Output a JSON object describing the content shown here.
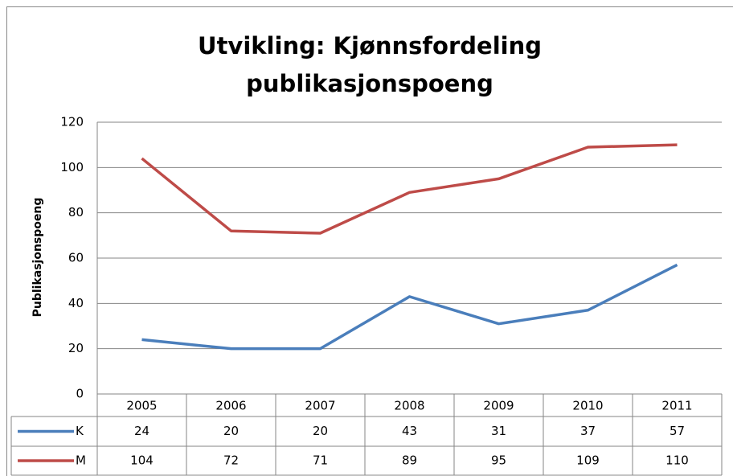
{
  "chart_data": {
    "type": "line",
    "title": "Utvikling: Kjønnsfordeling publikasjonspoeng",
    "y_label": "Publikasjonspoeng",
    "categories": [
      "2005",
      "2006",
      "2007",
      "2008",
      "2009",
      "2010",
      "2011"
    ],
    "series": [
      {
        "name": "K",
        "color": "#4a7ebb",
        "values": [
          24,
          20,
          20,
          43,
          31,
          37,
          57
        ]
      },
      {
        "name": "M",
        "color": "#be4b48",
        "values": [
          104,
          72,
          71,
          89,
          95,
          109,
          110
        ]
      }
    ],
    "ylim": [
      0,
      120
    ],
    "yticks": [
      0,
      20,
      40,
      60,
      80,
      100,
      120
    ],
    "grid": true
  }
}
